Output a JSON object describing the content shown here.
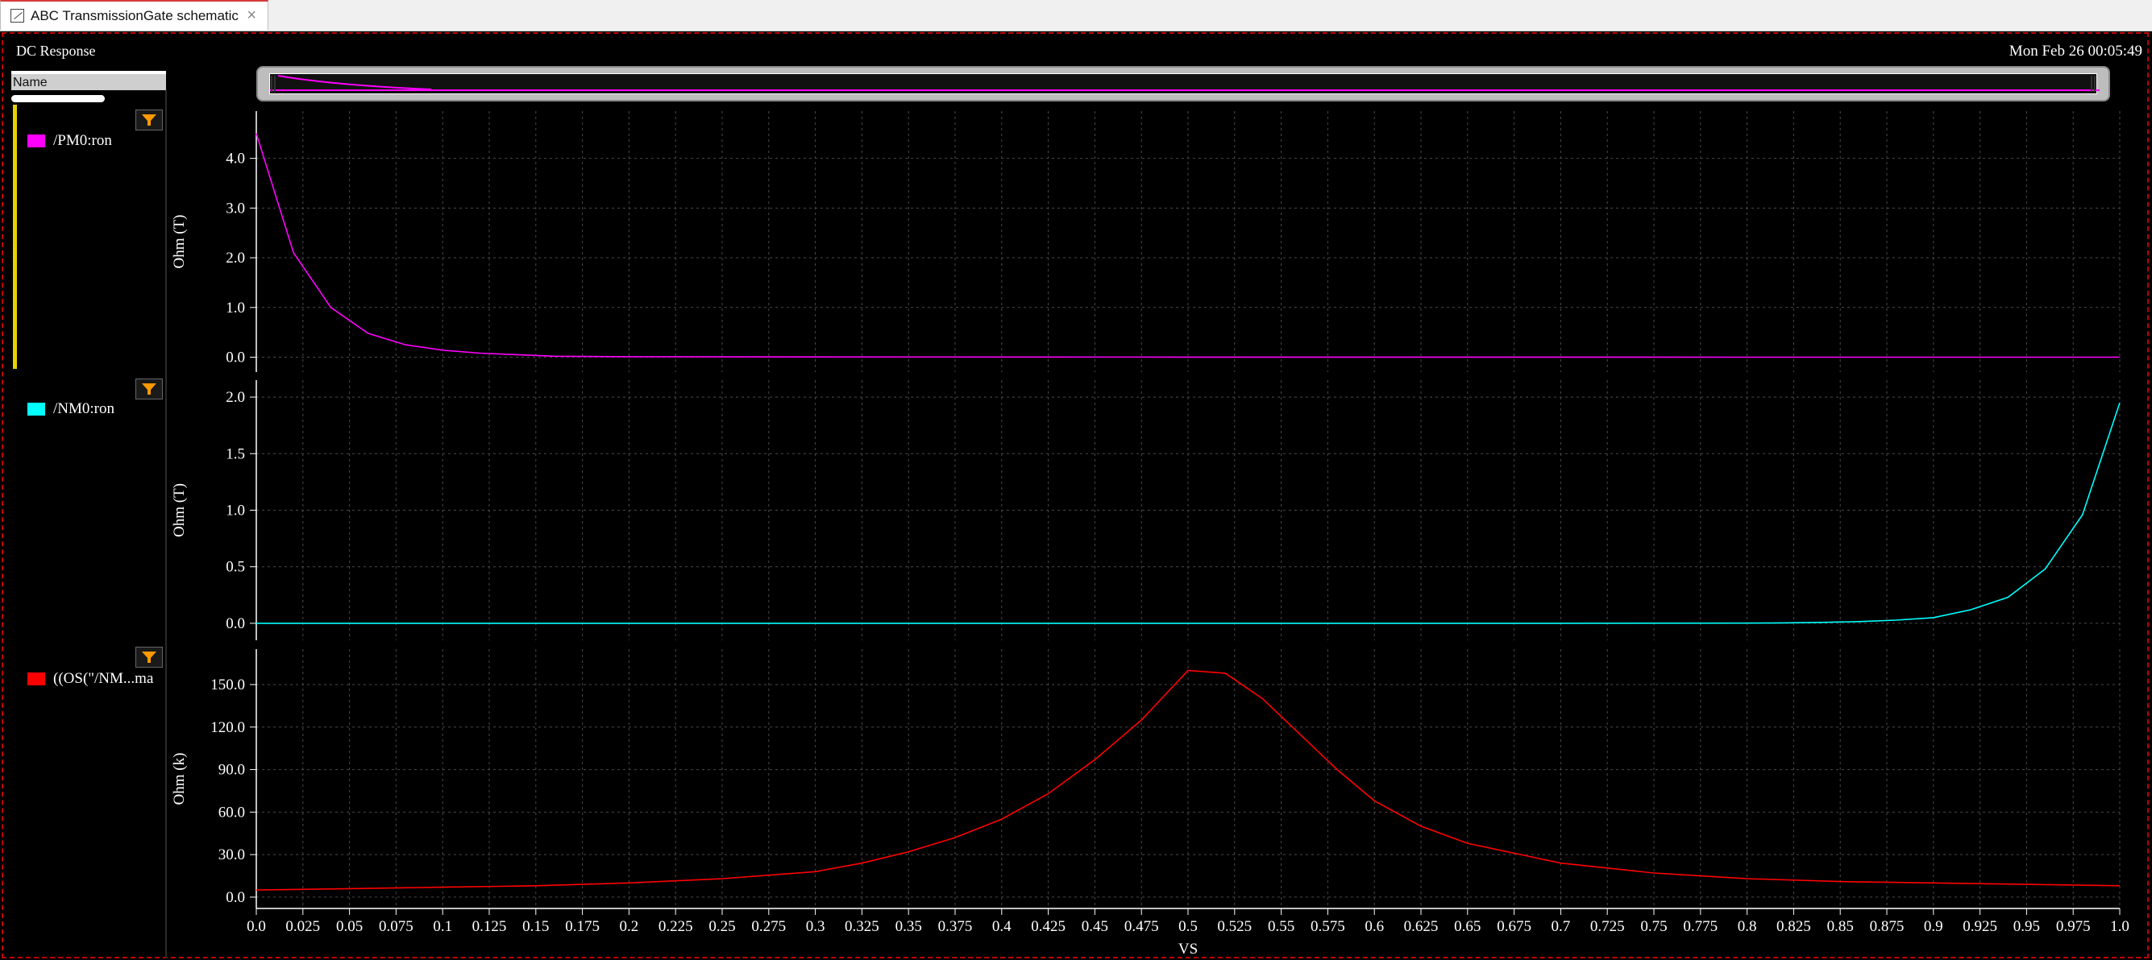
{
  "window": {
    "tab_title": "ABC TransmissionGate schematic",
    "tab_close": "×"
  },
  "panel": {
    "title": "DC Response",
    "timestamp": "Mon Feb 26 00:05:49"
  },
  "legend": {
    "header": "Name"
  },
  "colors": {
    "pm0": "#ff00ff",
    "nm0": "#00ffff",
    "ratio": "#ff0000",
    "grid": "#4a4a4a",
    "filter": "#ff9900"
  },
  "icons": {
    "filter": "filter-funnel-icon",
    "tab": "waveform-icon"
  },
  "chart_data": [
    {
      "type": "line",
      "series": [
        {
          "name": "/PM0:ron",
          "x": [
            0,
            0.02,
            0.04,
            0.06,
            0.08,
            0.1,
            0.12,
            0.14,
            0.16,
            0.2,
            0.3,
            0.4,
            0.5,
            0.6,
            0.7,
            0.8,
            0.9,
            1.0
          ],
          "values": [
            4.5,
            2.1,
            1.0,
            0.48,
            0.25,
            0.14,
            0.08,
            0.05,
            0.02,
            0.01,
            0.005,
            0.003,
            0.002,
            0.001,
            0.001,
            0.0,
            0.0,
            0.0
          ]
        }
      ],
      "ylabel": "Ohm (T)",
      "yticks": [
        "0.0",
        "1.0",
        "2.0",
        "3.0",
        "4.0"
      ],
      "ylim": [
        -0.3,
        4.95
      ],
      "xlim": [
        0,
        1.0
      ]
    },
    {
      "type": "line",
      "series": [
        {
          "name": "/NM0:ron",
          "x": [
            0,
            0.1,
            0.2,
            0.3,
            0.4,
            0.5,
            0.6,
            0.7,
            0.8,
            0.82,
            0.84,
            0.86,
            0.88,
            0.9,
            0.92,
            0.94,
            0.96,
            0.98,
            1.0
          ],
          "values": [
            0.0,
            0.0,
            0.0,
            0.0,
            0.0,
            0.0,
            0.0,
            0.0,
            0.002,
            0.004,
            0.008,
            0.015,
            0.028,
            0.05,
            0.12,
            0.23,
            0.48,
            0.96,
            1.95
          ]
        }
      ],
      "ylabel": "Ohm (T)",
      "yticks": [
        "0.0",
        "0.5",
        "1.0",
        "1.5",
        "2.0"
      ],
      "ylim": [
        -0.15,
        2.15
      ],
      "xlim": [
        0,
        1.0
      ]
    },
    {
      "type": "line",
      "series": [
        {
          "name": "((OS(\"/NM...ma",
          "x": [
            0,
            0.05,
            0.1,
            0.15,
            0.2,
            0.25,
            0.3,
            0.325,
            0.35,
            0.375,
            0.4,
            0.425,
            0.45,
            0.475,
            0.5,
            0.52,
            0.54,
            0.56,
            0.58,
            0.6,
            0.625,
            0.65,
            0.7,
            0.75,
            0.8,
            0.85,
            0.9,
            0.95,
            1.0
          ],
          "values": [
            5,
            6,
            7,
            8,
            10,
            13,
            18,
            24,
            32,
            42,
            55,
            73,
            97,
            125,
            160,
            158,
            140,
            115,
            90,
            68,
            50,
            38,
            24,
            17,
            13,
            11,
            10,
            9,
            8
          ]
        }
      ],
      "ylabel": "Ohm (k)",
      "yticks": [
        "0.0",
        "30.0",
        "60.0",
        "90.0",
        "120.0",
        "150.0"
      ],
      "ylim": [
        -8,
        175
      ],
      "xlim": [
        0,
        1.0
      ]
    }
  ],
  "xaxis": {
    "label": "VS",
    "ticks": [
      "0.0",
      "0.025",
      "0.05",
      "0.075",
      "0.1",
      "0.125",
      "0.15",
      "0.175",
      "0.2",
      "0.225",
      "0.25",
      "0.275",
      "0.3",
      "0.325",
      "0.35",
      "0.375",
      "0.4",
      "0.425",
      "0.45",
      "0.475",
      "0.5",
      "0.525",
      "0.55",
      "0.575",
      "0.6",
      "0.625",
      "0.65",
      "0.675",
      "0.7",
      "0.725",
      "0.75",
      "0.775",
      "0.8",
      "0.825",
      "0.85",
      "0.875",
      "0.9",
      "0.925",
      "0.95",
      "0.975",
      "1.0"
    ]
  }
}
